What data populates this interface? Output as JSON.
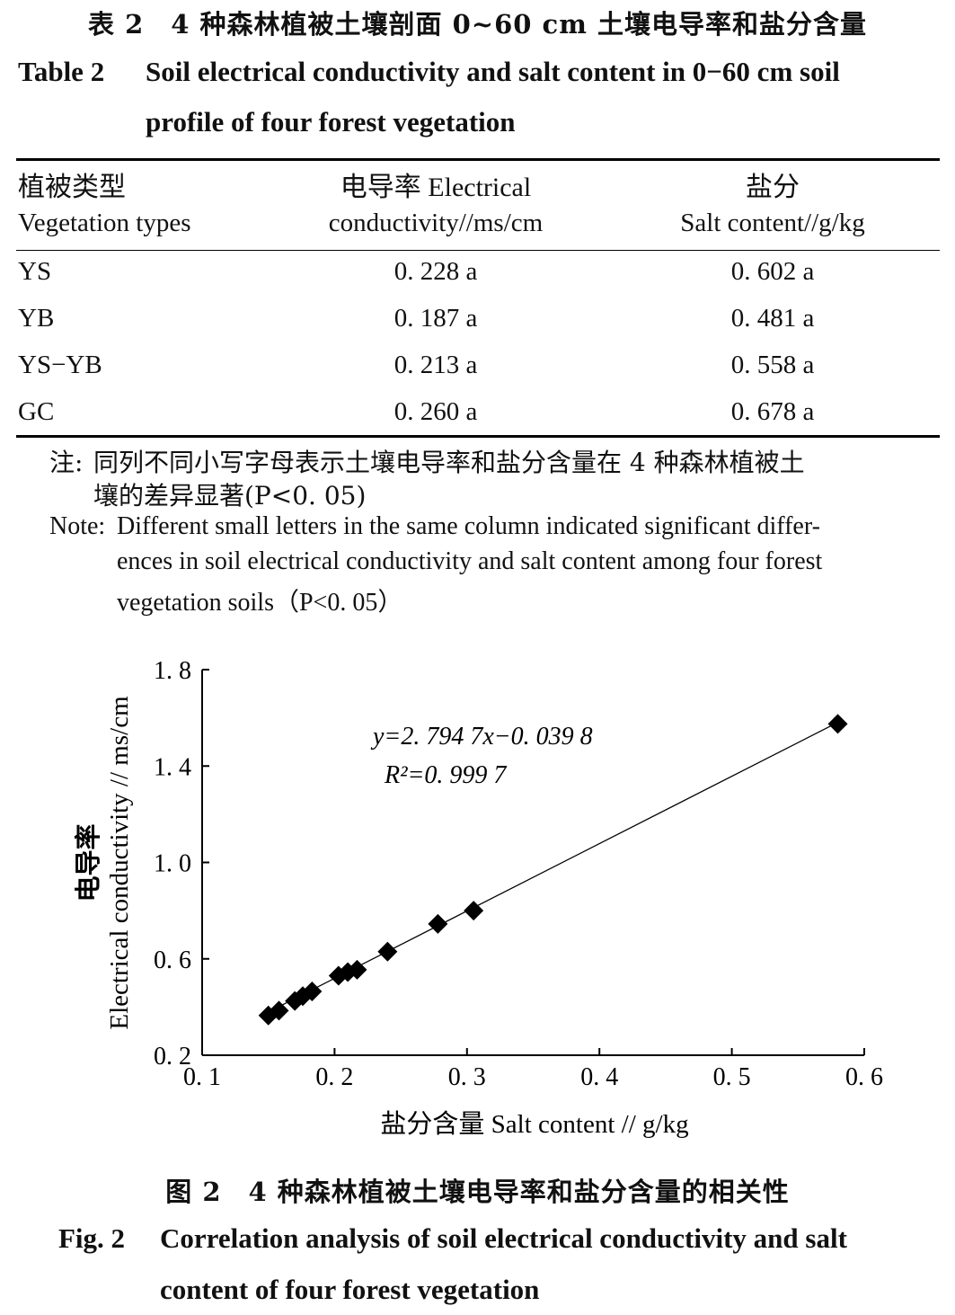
{
  "table": {
    "caption_cn": "表 2　4 种森林植被土壤剖面 0~60 cm 土壤电导率和盐分含量",
    "caption_en_label": "Table 2",
    "caption_en_line1": "Soil electrical conductivity and salt content in 0−60 cm soil",
    "caption_en_line2": "profile of four forest vegetation",
    "headers": [
      {
        "cn": "植被类型",
        "en": "Vegetation types"
      },
      {
        "cn": "电导率 Electrical",
        "en": "conductivity//ms/cm"
      },
      {
        "cn": "盐分",
        "en": "Salt content//g/kg"
      }
    ],
    "rows": [
      {
        "type": "YS",
        "ec": "0. 228 a",
        "salt": "0. 602 a"
      },
      {
        "type": "YB",
        "ec": "0. 187 a",
        "salt": "0. 481 a"
      },
      {
        "type": "YS−YB",
        "ec": "0. 213 a",
        "salt": "0. 558 a"
      },
      {
        "type": "GC",
        "ec": "0. 260 a",
        "salt": "0. 678 a"
      }
    ],
    "note_cn_label": "注:",
    "note_cn_line1": "同列不同小写字母表示土壤电导率和盐分含量在 4 种森林植被土",
    "note_cn_line2": "壤的差异显著(P<0. 05)",
    "note_en_label": "Note:",
    "note_en_line1": "Different small letters in the same column indicated significant differ-",
    "note_en_line2": "ences in soil electrical conductivity and salt content among four forest",
    "note_en_line3": "vegetation soils（P<0. 05）"
  },
  "figure": {
    "caption_cn": "图 2　4 种森林植被土壤电导率和盐分含量的相关性",
    "caption_en_label": "Fig. 2",
    "caption_en_line1": "Correlation analysis of soil electrical conductivity and salt",
    "caption_en_line2": "content of four forest vegetation"
  },
  "chart_data": {
    "type": "scatter",
    "xlabel": "盐分含量 Salt content // g/kg",
    "ylabel_cn": "电导率",
    "ylabel_en": "Electrical conductivity // ms/cm",
    "xlim": [
      0.1,
      0.6
    ],
    "ylim": [
      0.2,
      1.8
    ],
    "xticks": [
      0.1,
      0.2,
      0.3,
      0.4,
      0.5,
      0.6
    ],
    "xtick_labels": [
      "0. 1",
      "0. 2",
      "0. 3",
      "0. 4",
      "0. 5",
      "0. 6"
    ],
    "yticks": [
      0.2,
      0.6,
      1.0,
      1.4,
      1.8
    ],
    "ytick_labels": [
      "0. 2",
      "0. 6",
      "1. 0",
      "1. 4",
      "1. 8"
    ],
    "marker": "diamond",
    "grid": false,
    "points": [
      {
        "x": 0.15,
        "y": 0.365
      },
      {
        "x": 0.158,
        "y": 0.385
      },
      {
        "x": 0.17,
        "y": 0.425
      },
      {
        "x": 0.176,
        "y": 0.445
      },
      {
        "x": 0.183,
        "y": 0.465
      },
      {
        "x": 0.203,
        "y": 0.53
      },
      {
        "x": 0.21,
        "y": 0.545
      },
      {
        "x": 0.217,
        "y": 0.555
      },
      {
        "x": 0.24,
        "y": 0.63
      },
      {
        "x": 0.278,
        "y": 0.745
      },
      {
        "x": 0.305,
        "y": 0.8
      },
      {
        "x": 0.58,
        "y": 1.575
      }
    ],
    "fit": {
      "slope": 2.7947,
      "intercept": -0.0398,
      "x_range": [
        0.148,
        0.582
      ]
    },
    "equation": "y=2. 794  7x−0. 039  8",
    "r2": "R²=0. 999  7"
  }
}
